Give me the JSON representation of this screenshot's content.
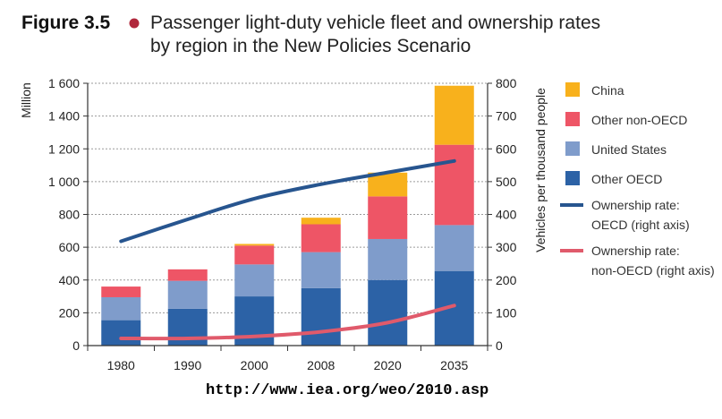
{
  "figure": {
    "label": "Figure 3.5",
    "title_line1": "Passenger light-duty vehicle fleet and ownership rates",
    "title_line2": "by region in the New Policies Scenario"
  },
  "footer_url": "http://www.iea.org/weo/2010.asp",
  "colors": {
    "china": "#f8b11c",
    "other_non_oecd": "#ee5566",
    "united_states": "#7f9ccb",
    "other_oecd": "#2c62a6",
    "line_oecd": "#27558f",
    "line_non_oecd": "#e05a6b",
    "bullet": "#b0283c"
  },
  "chart_data": {
    "type": "bar",
    "stacked": true,
    "categories": [
      "1980",
      "1990",
      "2000",
      "2008",
      "2020",
      "2035"
    ],
    "ylabel": "Million",
    "y2label": "Vehicles per thousand people",
    "ylim": [
      0,
      1600
    ],
    "y2lim": [
      0,
      800
    ],
    "y_ticks": [
      "0",
      "200",
      "400",
      "600",
      "800",
      "1 000",
      "1 200",
      "1 400",
      "1 600"
    ],
    "y2_ticks": [
      "0",
      "100",
      "200",
      "300",
      "400",
      "500",
      "600",
      "700",
      "800"
    ],
    "grid": true,
    "legend_position": "right",
    "series": [
      {
        "name": "Other OECD",
        "key": "other_oecd",
        "values": [
          155,
          225,
          300,
          350,
          400,
          455
        ]
      },
      {
        "name": "United States",
        "key": "united_states",
        "values": [
          140,
          170,
          195,
          220,
          250,
          280
        ]
      },
      {
        "name": "Other non-OECD",
        "key": "other_non_oecd",
        "values": [
          65,
          70,
          115,
          170,
          260,
          490
        ]
      },
      {
        "name": "China",
        "key": "china",
        "values": [
          0,
          0,
          10,
          40,
          145,
          360
        ]
      }
    ],
    "lines": [
      {
        "name_line1": "Ownership rate:",
        "name_line2": "OECD (right axis)",
        "key": "line_oecd",
        "axis": "right",
        "values": [
          318,
          385,
          448,
          492,
          528,
          563
        ]
      },
      {
        "name_line1": "Ownership rate:",
        "name_line2": "non-OECD (right axis)",
        "key": "line_non_oecd",
        "axis": "right",
        "values": [
          22,
          22,
          28,
          42,
          70,
          122
        ]
      }
    ]
  }
}
